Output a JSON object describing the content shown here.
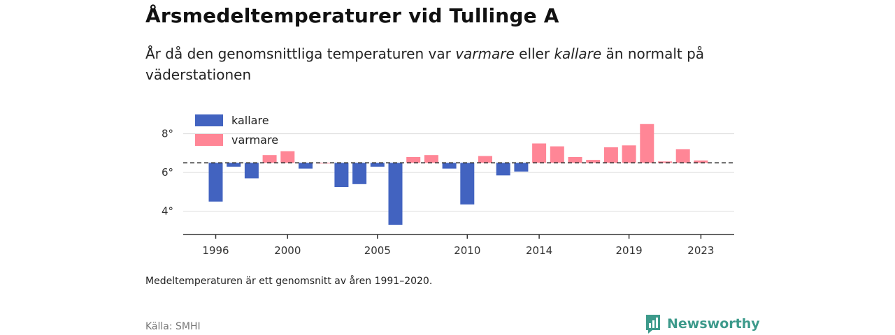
{
  "title": "Årsmedeltemperaturer vid Tullinge A",
  "subtitle": {
    "part1": "År då den genomsnittliga temperaturen var ",
    "warmer": "varmare",
    "part2": " eller ",
    "colder": "kallare",
    "part3": " än normalt på väderstationen"
  },
  "footnote": "Medeltemperaturen är ett genomsnitt av åren 1991–2020.",
  "source": "Källa: SMHI",
  "logo_text": "Newsworthy",
  "colors": {
    "colder": "#4263c0",
    "warmer": "#ff8696",
    "logo": "#3d9a8b"
  },
  "chart_data": {
    "type": "bar",
    "baseline": 6.5,
    "ylim": [
      2.8,
      9.5
    ],
    "yticks": [
      4,
      6,
      8
    ],
    "ytick_labels": [
      "4°",
      "6°",
      "8°"
    ],
    "xticks": [
      1996,
      2000,
      2005,
      2010,
      2014,
      2019,
      2023
    ],
    "xtick_labels": [
      "1996",
      "2000",
      "2005",
      "2010",
      "2014",
      "2019",
      "2023"
    ],
    "legend": [
      {
        "key": "colder",
        "label": "kallare"
      },
      {
        "key": "warmer",
        "label": "varmare"
      }
    ],
    "legend_position": "top-left",
    "grid": true,
    "years": [
      1996,
      1997,
      1998,
      1999,
      2000,
      2001,
      2002,
      2003,
      2004,
      2005,
      2006,
      2007,
      2008,
      2009,
      2010,
      2011,
      2012,
      2013,
      2014,
      2015,
      2016,
      2017,
      2018,
      2019,
      2020,
      2021,
      2022,
      2023
    ],
    "values": [
      4.5,
      6.3,
      5.7,
      6.9,
      7.1,
      6.2,
      6.5,
      5.25,
      5.4,
      6.3,
      3.3,
      6.8,
      6.9,
      6.2,
      4.35,
      6.85,
      5.85,
      6.05,
      7.5,
      7.35,
      6.8,
      6.65,
      7.3,
      7.4,
      8.5,
      6.57,
      7.2,
      6.62
    ]
  }
}
